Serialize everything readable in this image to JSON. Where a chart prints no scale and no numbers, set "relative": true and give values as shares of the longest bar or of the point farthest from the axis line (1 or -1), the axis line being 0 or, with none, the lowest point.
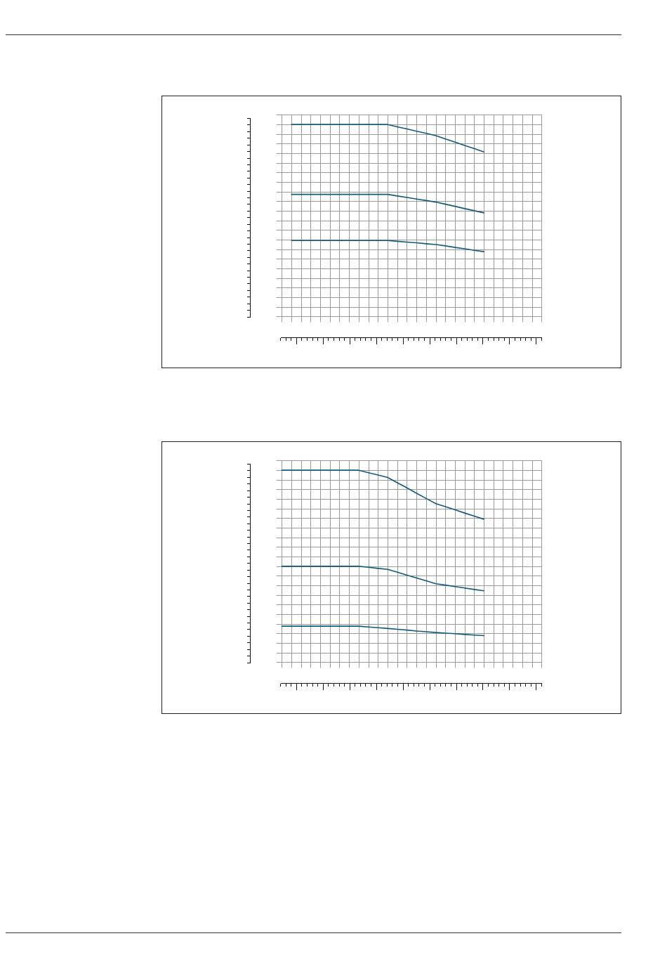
{
  "chart_data": [
    {
      "type": "line",
      "relative": true,
      "grid": true,
      "marker": "none",
      "line_style": "solid",
      "categories": [
        null,
        null,
        null,
        null,
        null,
        null,
        null,
        null,
        null,
        null,
        null,
        null,
        null,
        null,
        null,
        null,
        null,
        null,
        null,
        null,
        null,
        null,
        null,
        null,
        null,
        null,
        null,
        null
      ],
      "series": [
        {
          "color": "#0f5b7f",
          "values": [
            null,
            1,
            1,
            1,
            1,
            1,
            1,
            1,
            1,
            1,
            1,
            1,
            0.988,
            0.977,
            0.965,
            0.954,
            0.942,
            0.925,
            0.908,
            0.891,
            0.874,
            0.857,
            null,
            null,
            null,
            null,
            null,
            null
          ]
        },
        {
          "color": "#0f5b7f",
          "values": [
            null,
            0.636,
            0.636,
            0.636,
            0.636,
            0.636,
            0.636,
            0.636,
            0.636,
            0.636,
            0.636,
            0.636,
            0.628,
            0.62,
            0.612,
            0.604,
            0.596,
            0.585,
            0.574,
            0.562,
            0.551,
            0.54,
            null,
            null,
            null,
            null,
            null,
            null
          ]
        },
        {
          "color": "#0f5b7f",
          "values": [
            null,
            0.396,
            0.396,
            0.396,
            0.396,
            0.396,
            0.396,
            0.396,
            0.396,
            0.396,
            0.396,
            0.396,
            0.392,
            0.388,
            0.384,
            0.379,
            0.375,
            0.368,
            0.36,
            0.353,
            0.345,
            0.338,
            null,
            null,
            null,
            null,
            null,
            null
          ]
        }
      ]
    },
    {
      "type": "line",
      "relative": true,
      "grid": true,
      "marker": "none",
      "line_style": "solid",
      "categories": [
        null,
        null,
        null,
        null,
        null,
        null,
        null,
        null,
        null,
        null,
        null,
        null,
        null,
        null,
        null,
        null,
        null,
        null,
        null,
        null,
        null,
        null,
        null,
        null,
        null,
        null,
        null,
        null
      ],
      "series": [
        {
          "color": "#0f5b7f",
          "values": [
            1,
            1,
            1,
            1,
            1,
            1,
            1,
            1,
            1,
            0.987,
            0.975,
            0.962,
            0.935,
            0.908,
            0.88,
            0.853,
            0.826,
            0.81,
            0.794,
            0.777,
            0.761,
            0.745,
            null,
            null,
            null,
            null,
            null,
            null
          ]
        },
        {
          "color": "#0f5b7f",
          "values": [
            0.5,
            0.5,
            0.5,
            0.5,
            0.5,
            0.5,
            0.5,
            0.5,
            0.5,
            0.495,
            0.489,
            0.484,
            0.469,
            0.454,
            0.439,
            0.424,
            0.409,
            0.402,
            0.394,
            0.387,
            0.379,
            0.372,
            null,
            null,
            null,
            null,
            null,
            null
          ]
        },
        {
          "color": "#0f5b7f",
          "values": [
            0.188,
            0.188,
            0.188,
            0.188,
            0.188,
            0.188,
            0.188,
            0.188,
            0.188,
            0.184,
            0.18,
            0.176,
            0.172,
            0.168,
            0.163,
            0.159,
            0.155,
            0.152,
            0.149,
            0.145,
            0.142,
            0.139,
            null,
            null,
            null,
            null,
            null,
            null
          ]
        }
      ]
    }
  ]
}
